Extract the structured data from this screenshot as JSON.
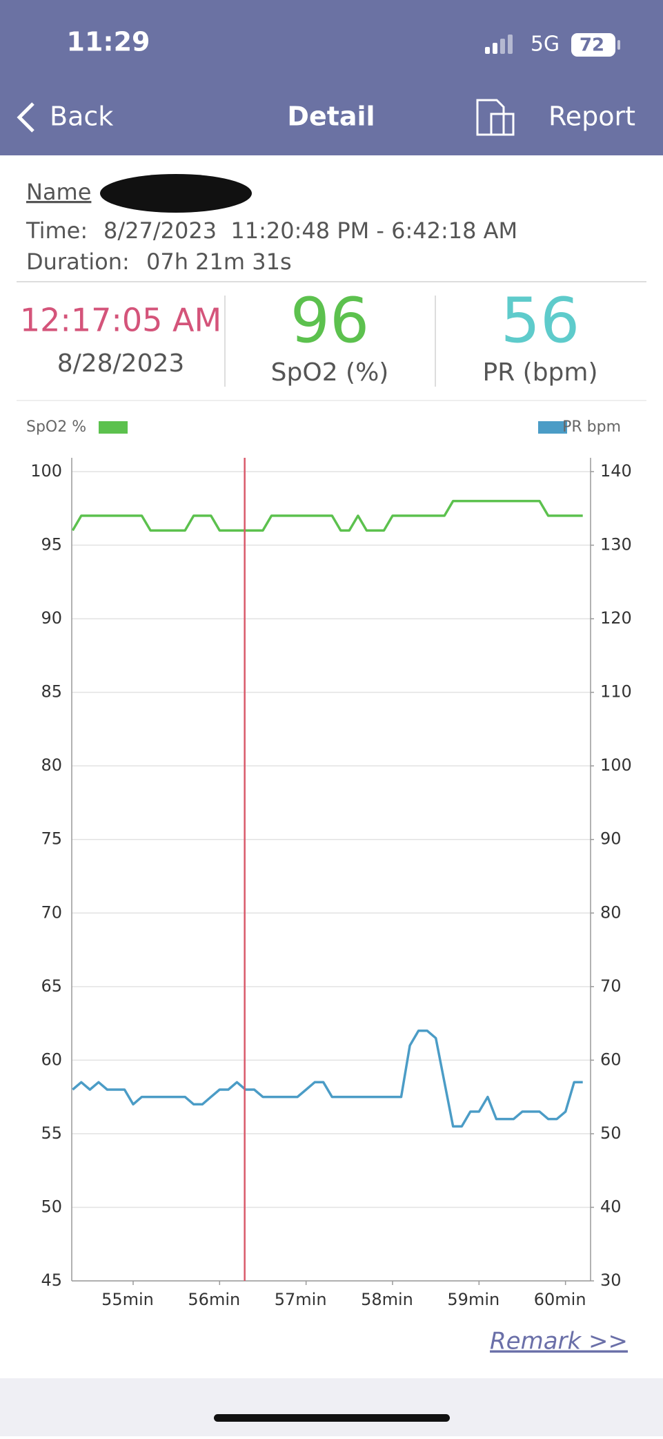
{
  "status_bar": {
    "time": "11:29",
    "network": "5G",
    "battery": "72"
  },
  "nav": {
    "back": "Back",
    "title": "Detail",
    "report": "Report"
  },
  "record": {
    "name_label": "Name",
    "time_label": "Time:",
    "time_value": "8/27/2023  11:20:48 PM - 6:42:18 AM",
    "duration_label": "Duration:",
    "duration_value": "07h 21m 31s"
  },
  "summary": {
    "time": "12:17:05 AM",
    "date": "8/28/2023",
    "spo2_value": 96,
    "spo2_label": "SpO2 (%)",
    "pr_value": 56,
    "pr_label": "PR (bpm)"
  },
  "chart_data": {
    "type": "line",
    "x": [
      54.3,
      54.4,
      54.5,
      54.6,
      54.7,
      54.8,
      54.9,
      55.0,
      55.1,
      55.2,
      55.3,
      55.4,
      55.5,
      55.6,
      55.7,
      55.8,
      55.9,
      56.0,
      56.1,
      56.2,
      56.3,
      56.4,
      56.5,
      56.6,
      56.7,
      56.8,
      56.9,
      57.0,
      57.1,
      57.2,
      57.3,
      57.4,
      57.5,
      57.6,
      57.7,
      57.8,
      57.9,
      58.0,
      58.1,
      58.2,
      58.3,
      58.4,
      58.5,
      58.6,
      58.7,
      58.8,
      58.9,
      59.0,
      59.1,
      59.2,
      59.3,
      59.4,
      59.5,
      59.6,
      59.7,
      59.8,
      59.9,
      60.0,
      60.1,
      60.2
    ],
    "series": [
      {
        "name": "SpO2 %",
        "color": "#5cc14e",
        "values": [
          96,
          97,
          97,
          97,
          97,
          97,
          97,
          97,
          97,
          96,
          96,
          96,
          96,
          96,
          97,
          97,
          97,
          96,
          96,
          96,
          96,
          96,
          96,
          97,
          97,
          97,
          97,
          97,
          97,
          97,
          97,
          96,
          96,
          97,
          96,
          96,
          96,
          97,
          97,
          97,
          97,
          97,
          97,
          97,
          98,
          98,
          98,
          98,
          98,
          98,
          98,
          98,
          98,
          98,
          98,
          97,
          97,
          97,
          97,
          97
        ]
      },
      {
        "name": "PR bpm",
        "color": "#4b9cc6",
        "axis": "y2",
        "values": [
          56,
          57,
          56,
          57,
          56,
          56,
          56,
          54,
          55,
          55,
          55,
          55,
          55,
          55,
          54,
          54,
          55,
          56,
          56,
          57,
          56,
          56,
          55,
          55,
          55,
          55,
          55,
          56,
          57,
          57,
          55,
          55,
          55,
          55,
          55,
          55,
          55,
          55,
          55,
          62,
          64,
          64,
          63,
          57,
          51,
          51,
          53,
          53,
          55,
          52,
          52,
          52,
          53,
          53,
          53,
          52,
          52,
          53,
          57,
          57
        ]
      }
    ],
    "xlim": [
      54.29,
      60.29
    ],
    "xticks": [
      {
        "value": 55,
        "label": "55min"
      },
      {
        "value": 56,
        "label": "56min"
      },
      {
        "value": 57,
        "label": "57min"
      },
      {
        "value": 58,
        "label": "58min"
      },
      {
        "value": 59,
        "label": "59min"
      },
      {
        "value": 60,
        "label": "60min"
      }
    ],
    "ylim": [
      45,
      100
    ],
    "yticks": [
      45,
      50,
      55,
      60,
      65,
      70,
      75,
      80,
      85,
      90,
      95,
      100
    ],
    "y2lim": [
      30,
      140
    ],
    "y2ticks": [
      30,
      40,
      50,
      60,
      70,
      80,
      90,
      100,
      110,
      120,
      130,
      140
    ],
    "grid": true,
    "cursor_x": 56.29,
    "cursor_color": "#d9596a"
  },
  "remark": "Remark >>"
}
